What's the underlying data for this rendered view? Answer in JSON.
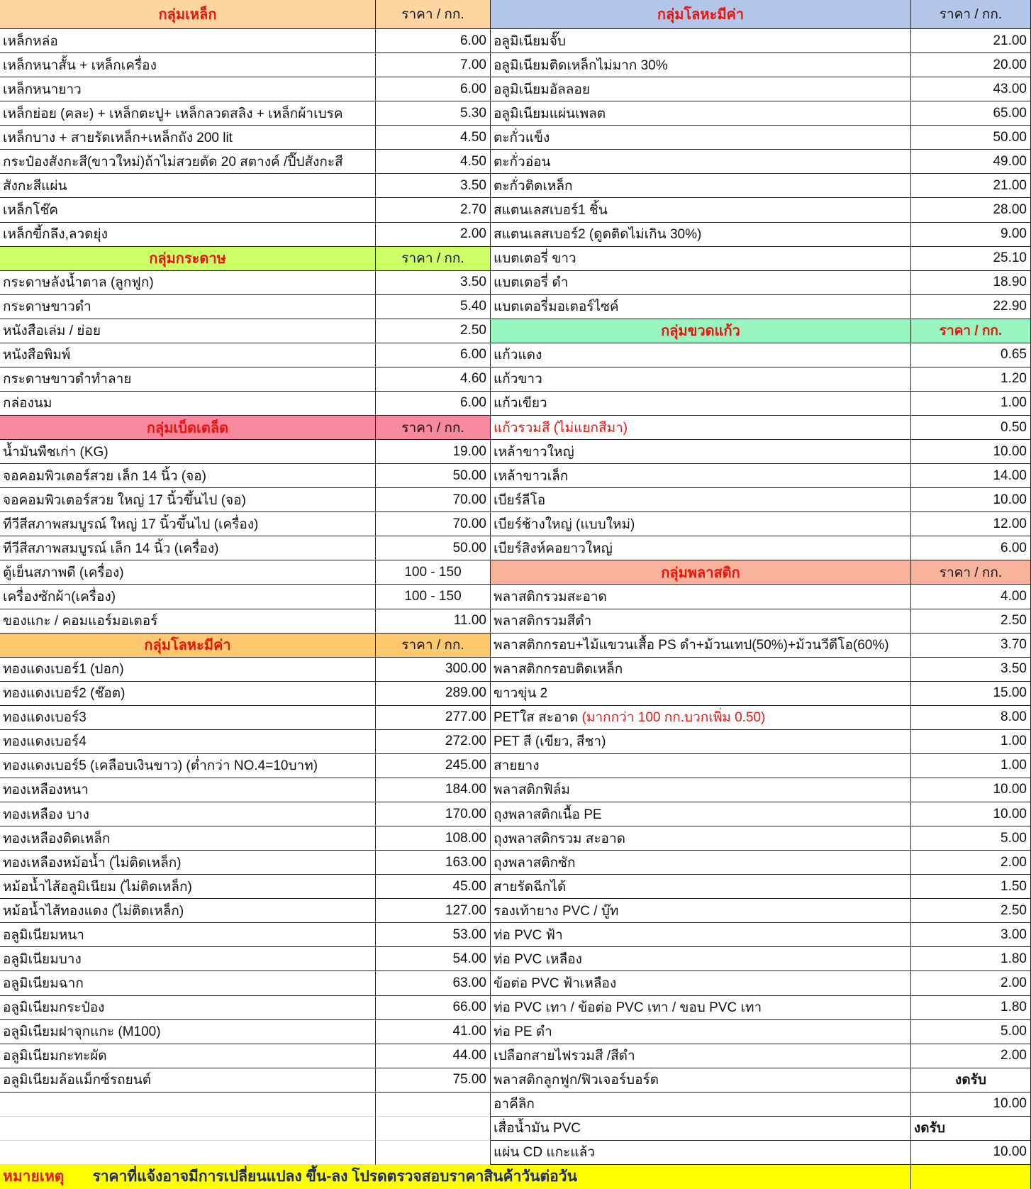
{
  "colors": {
    "steel": "#fcd5a0",
    "paper": "#ccff66",
    "misc": "#f6899c",
    "precious_left": "#fcc96f",
    "precious_right": "#b4c6e7",
    "glass": "#99f5bf",
    "plastic": "#f8b39c",
    "footer": "#ffff00",
    "red_text": "#e8140c"
  },
  "left": [
    {
      "type": "header",
      "name": "กลุ่มเหล็ก",
      "price": "ราคา / กก.",
      "color": "steel"
    },
    {
      "type": "item",
      "name": "เหล็กหล่อ",
      "price": "6.00"
    },
    {
      "type": "item",
      "name": "เหล็กหนาสั้น + เหล็กเครื่อง",
      "price": "7.00"
    },
    {
      "type": "item",
      "name": "เหล็กหนายาว",
      "price": "6.00"
    },
    {
      "type": "item",
      "name": "เหล็กย่อย (คละ) + เหล็กตะปู+ เหล็กลวดสลิง + เหล็กผ้าเบรค",
      "price": "5.30"
    },
    {
      "type": "item",
      "name": "เหล็กบาง + สายรัดเหล็ก+เหล็กถัง 200 lit",
      "price": "4.50"
    },
    {
      "type": "item",
      "name": "กระป๋องสังกะสี(ขาวใหม่)ถ้าไม่สวยตัด 20 สตางค์ /ปี๊ปสังกะสี",
      "price": "4.50"
    },
    {
      "type": "item",
      "name": "สังกะสีแผ่น",
      "price": "3.50"
    },
    {
      "type": "item",
      "name": "เหล็กโช๊ค",
      "price": "2.70"
    },
    {
      "type": "item",
      "name": "เหล็กขี้กลึง,ลวดยุ่ง",
      "price": "2.00"
    },
    {
      "type": "header",
      "name": "กลุ่มกระดาษ",
      "price": "ราคา / กก.",
      "color": "paper"
    },
    {
      "type": "item",
      "name": "กระดาษลังน้ำตาล (ลูกฟูก)",
      "price": "3.50"
    },
    {
      "type": "item",
      "name": "กระดาษขาวดำ",
      "price": "5.40"
    },
    {
      "type": "item",
      "name": "หนังสือเล่ม / ย่อย",
      "price": "2.50"
    },
    {
      "type": "item",
      "name": "หนังสือพิมพ์",
      "price": "6.00"
    },
    {
      "type": "item",
      "name": "กระดาษขาวดำทำลาย",
      "price": "4.60"
    },
    {
      "type": "item",
      "name": "กล่องนม",
      "price": "6.00"
    },
    {
      "type": "header",
      "name": "กลุ่มเบ็ดเตล็ด",
      "price": "ราคา / กก.",
      "color": "misc"
    },
    {
      "type": "item",
      "name": "น้ำมันพืชเก่า (KG)",
      "price": "19.00"
    },
    {
      "type": "item",
      "name": "จอคอมพิวเตอร์สวย  เล็ก 14 นิ้ว (จอ)",
      "price": "50.00"
    },
    {
      "type": "item",
      "name": "จอคอมพิวเตอร์สวย ใหญ่ 17 นิ้วขึ้นไป (จอ)",
      "price": "70.00"
    },
    {
      "type": "item",
      "name": "ทีวีสีสภาพสมบูรณ์  ใหญ่ 17 นิ้วขึ้นไป (เครื่อง)",
      "price": "70.00"
    },
    {
      "type": "item",
      "name": "ทีวีสีสภาพสมบูรณ์ เล็ก 14 นิ้ว (เครื่อง)",
      "price": "50.00"
    },
    {
      "type": "item",
      "name": "ตู้เย็นสภาพดี (เครื่อง)",
      "price": "100 - 150",
      "align": "center"
    },
    {
      "type": "item",
      "name": "เครื่องซักผ้า(เครื่อง)",
      "price": "100 - 150",
      "align": "center"
    },
    {
      "type": "item",
      "name": "ของแกะ  /  คอมแอร์มอเตอร์",
      "price": "11.00"
    },
    {
      "type": "header",
      "name": "กลุ่มโลหะมีค่า",
      "price": "ราคา / กก.",
      "color": "precious_left"
    },
    {
      "type": "item",
      "name": "ทองแดงเบอร์1  (ปอก)",
      "price": "300.00"
    },
    {
      "type": "item",
      "name": "ทองแดงเบอร์2  (ช๊อต)",
      "price": "289.00"
    },
    {
      "type": "item",
      "name": "ทองแดงเบอร์3",
      "price": "277.00"
    },
    {
      "type": "item",
      "name": "ทองแดงเบอร์4",
      "price": "272.00"
    },
    {
      "type": "item",
      "name": "ทองแดงเบอร์5 (เคลือบเงินขาว) (ต่ำกว่า NO.4=10บาท)",
      "price": "245.00"
    },
    {
      "type": "item",
      "name": "ทองเหลืองหนา",
      "price": "184.00"
    },
    {
      "type": "item",
      "name": "ทองเหลือง บาง",
      "price": "170.00"
    },
    {
      "type": "item",
      "name": "ทองเหลืองติดเหล็ก",
      "price": "108.00"
    },
    {
      "type": "item",
      "name": "ทองเหลืองหม้อน้ำ (ไม่ติดเหล็ก)",
      "price": "163.00"
    },
    {
      "type": "item",
      "name": "หม้อน้ำไส้อลูมิเนียม (ไม่ติดเหล็ก)",
      "price": "45.00"
    },
    {
      "type": "item",
      "name": "หม้อน้ำไส้ทองแดง (ไม่ติดเหล็ก)",
      "price": "127.00"
    },
    {
      "type": "item",
      "name": "อลูมิเนียมหนา",
      "price": "53.00"
    },
    {
      "type": "item",
      "name": "อลูมิเนียมบาง",
      "price": "54.00"
    },
    {
      "type": "item",
      "name": "อลูมิเนียมฉาก",
      "price": "63.00"
    },
    {
      "type": "item",
      "name": "อลูมิเนียมกระป๋อง",
      "price": "66.00"
    },
    {
      "type": "item",
      "name": "อลูมิเนียมฝาจุกแกะ (M100)",
      "price": "41.00"
    },
    {
      "type": "item",
      "name": "อลูมิเนียมกะทะผัด",
      "price": "44.00"
    },
    {
      "type": "item",
      "name": "อลูมิเนียมล้อแม็กซ์รถยนต์",
      "price": "75.00"
    },
    {
      "type": "empty"
    },
    {
      "type": "empty"
    },
    {
      "type": "empty"
    }
  ],
  "right": [
    {
      "type": "header",
      "name": "กลุ่มโลหะมีค่า",
      "price": "ราคา / กก.",
      "color": "precious_right"
    },
    {
      "type": "item",
      "name": "อลูมิเนียมจั๊บ",
      "price": "21.00"
    },
    {
      "type": "item",
      "name": "อลูมิเนียมติดเหล็กไม่มาก 30%",
      "price": "20.00"
    },
    {
      "type": "item",
      "name": "อลูมิเนียมอัลลอย",
      "price": "43.00"
    },
    {
      "type": "item",
      "name": "อลูมิเนียมแผ่นเพลต",
      "price": "65.00"
    },
    {
      "type": "item",
      "name": "ตะกั่วแข็ง",
      "price": "50.00"
    },
    {
      "type": "item",
      "name": "ตะกั่วอ่อน",
      "price": "49.00"
    },
    {
      "type": "item",
      "name": "ตะกั่วติดเหล็ก",
      "price": "21.00"
    },
    {
      "type": "item",
      "name": "สแตนเลสเบอร์1 ชิ้น",
      "price": "28.00"
    },
    {
      "type": "item",
      "name": "สแตนเลสเบอร์2  (ดูดติดไม่เกิน 30%)",
      "price": "9.00"
    },
    {
      "type": "item",
      "name": "แบตเตอรี่ ขาว",
      "price": "25.10"
    },
    {
      "type": "item",
      "name": "แบตเตอรี่ ดำ",
      "price": "18.90"
    },
    {
      "type": "item",
      "name": "แบตเตอรี่มอเตอร์ไซค์",
      "price": "22.90"
    },
    {
      "type": "header",
      "name": "กลุ่มขวดแก้ว",
      "price": "ราคา / กก.",
      "color": "glass",
      "price_red": true
    },
    {
      "type": "item",
      "name": "แก้วแดง",
      "price": "0.65"
    },
    {
      "type": "item",
      "name": "แก้วขาว",
      "price": "1.20"
    },
    {
      "type": "item",
      "name": "แก้วเขียว",
      "price": "1.00"
    },
    {
      "type": "item",
      "name": "แก้วรวมสี (ไม่แยกสีมา)",
      "price": "0.50",
      "red": true
    },
    {
      "type": "item",
      "name": "เหล้าขาวใหญ่",
      "price": "10.00"
    },
    {
      "type": "item",
      "name": "เหล้าขาวเล็ก",
      "price": "14.00"
    },
    {
      "type": "item",
      "name": "เบียร์ลีโอ",
      "price": "10.00"
    },
    {
      "type": "item",
      "name": "เบียร์ช้างใหญ่  (แบบใหม่)",
      "price": "12.00"
    },
    {
      "type": "item",
      "name": "เบียร์สิงห์คอยาวใหญ่",
      "price": "6.00"
    },
    {
      "type": "header",
      "name": "กลุ่มพลาสติก",
      "price": "ราคา / กก.",
      "color": "plastic"
    },
    {
      "type": "item",
      "name": "พลาสติกรวมสะอาด",
      "price": "4.00"
    },
    {
      "type": "item",
      "name": "พลาสติกรวมสีดำ",
      "price": "2.50"
    },
    {
      "type": "item",
      "name": "พลาสติกกรอบ+ไม้แขวนเสื้อ PS ดำ+ม้วนเทป(50%)+ม้วนวีดีโอ(60%)",
      "price": "3.70"
    },
    {
      "type": "item",
      "name": "พลาสติกกรอบติดเหล็ก",
      "price": "3.50"
    },
    {
      "type": "item",
      "name": "ขาวขุ่น 2",
      "price": "15.00"
    },
    {
      "type": "item",
      "name": "PETใส สะอาด ",
      "note": "(มากกว่า 100 กก.บวกเพิ่ม 0.50)",
      "price": "8.00"
    },
    {
      "type": "item",
      "name": "PET สี  (เขียว, สีชา)",
      "price": "1.00"
    },
    {
      "type": "item",
      "name": "สายยาง",
      "price": "1.00"
    },
    {
      "type": "item",
      "name": "พลาสติกฟิล์ม",
      "price": "10.00"
    },
    {
      "type": "item",
      "name": "ถุงพลาสติกเนื้อ PE",
      "price": "10.00"
    },
    {
      "type": "item",
      "name": "ถุงพลาสติกรวม สะอาด",
      "price": "5.00"
    },
    {
      "type": "item",
      "name": "ถุงพลาสติกซัก",
      "price": "2.00"
    },
    {
      "type": "item",
      "name": "สายรัดฉีกได้",
      "price": "1.50"
    },
    {
      "type": "item",
      "name": "รองเท้ายาง PVC / บู๊ท",
      "price": "2.50"
    },
    {
      "type": "item",
      "name": "ท่อ PVC ฟ้า",
      "price": "3.00"
    },
    {
      "type": "item",
      "name": "ท่อ PVC เหลือง",
      "price": "1.80"
    },
    {
      "type": "item",
      "name": "ข้อต่อ PVC ฟ้าเหลือง",
      "price": "2.00"
    },
    {
      "type": "item",
      "name": "ท่อ PVC เทา / ข้อต่อ PVC เทา / ขอบ PVC เทา",
      "price": "1.80"
    },
    {
      "type": "item",
      "name": "ท่อ PE ดำ",
      "price": "5.00"
    },
    {
      "type": "item",
      "name": "เปลือกสายไฟรวมสี /สีดำ",
      "price": "2.00"
    },
    {
      "type": "item",
      "name": "พลาสติกลูกฟูก/ฟิวเจอร์บอร์ด",
      "price": "งดรับ",
      "align": "center",
      "bold": true
    },
    {
      "type": "item",
      "name": "อาคีลิก",
      "price": "10.00"
    },
    {
      "type": "item",
      "name": "เสื่อน้ำมัน PVC",
      "price": "งดรับ",
      "align": "left",
      "bold": true
    },
    {
      "type": "item",
      "name": "แผ่น CD แกะแล้ว",
      "price": "10.00"
    }
  ],
  "footer": {
    "label": "หมายเหตุ",
    "message": "ราคาที่แจ้งอาจมีการเปลี่ยนแปลง ขึ้น-ลง โปรดตรวจสอบราคาสินค้าวันต่อวัน"
  }
}
